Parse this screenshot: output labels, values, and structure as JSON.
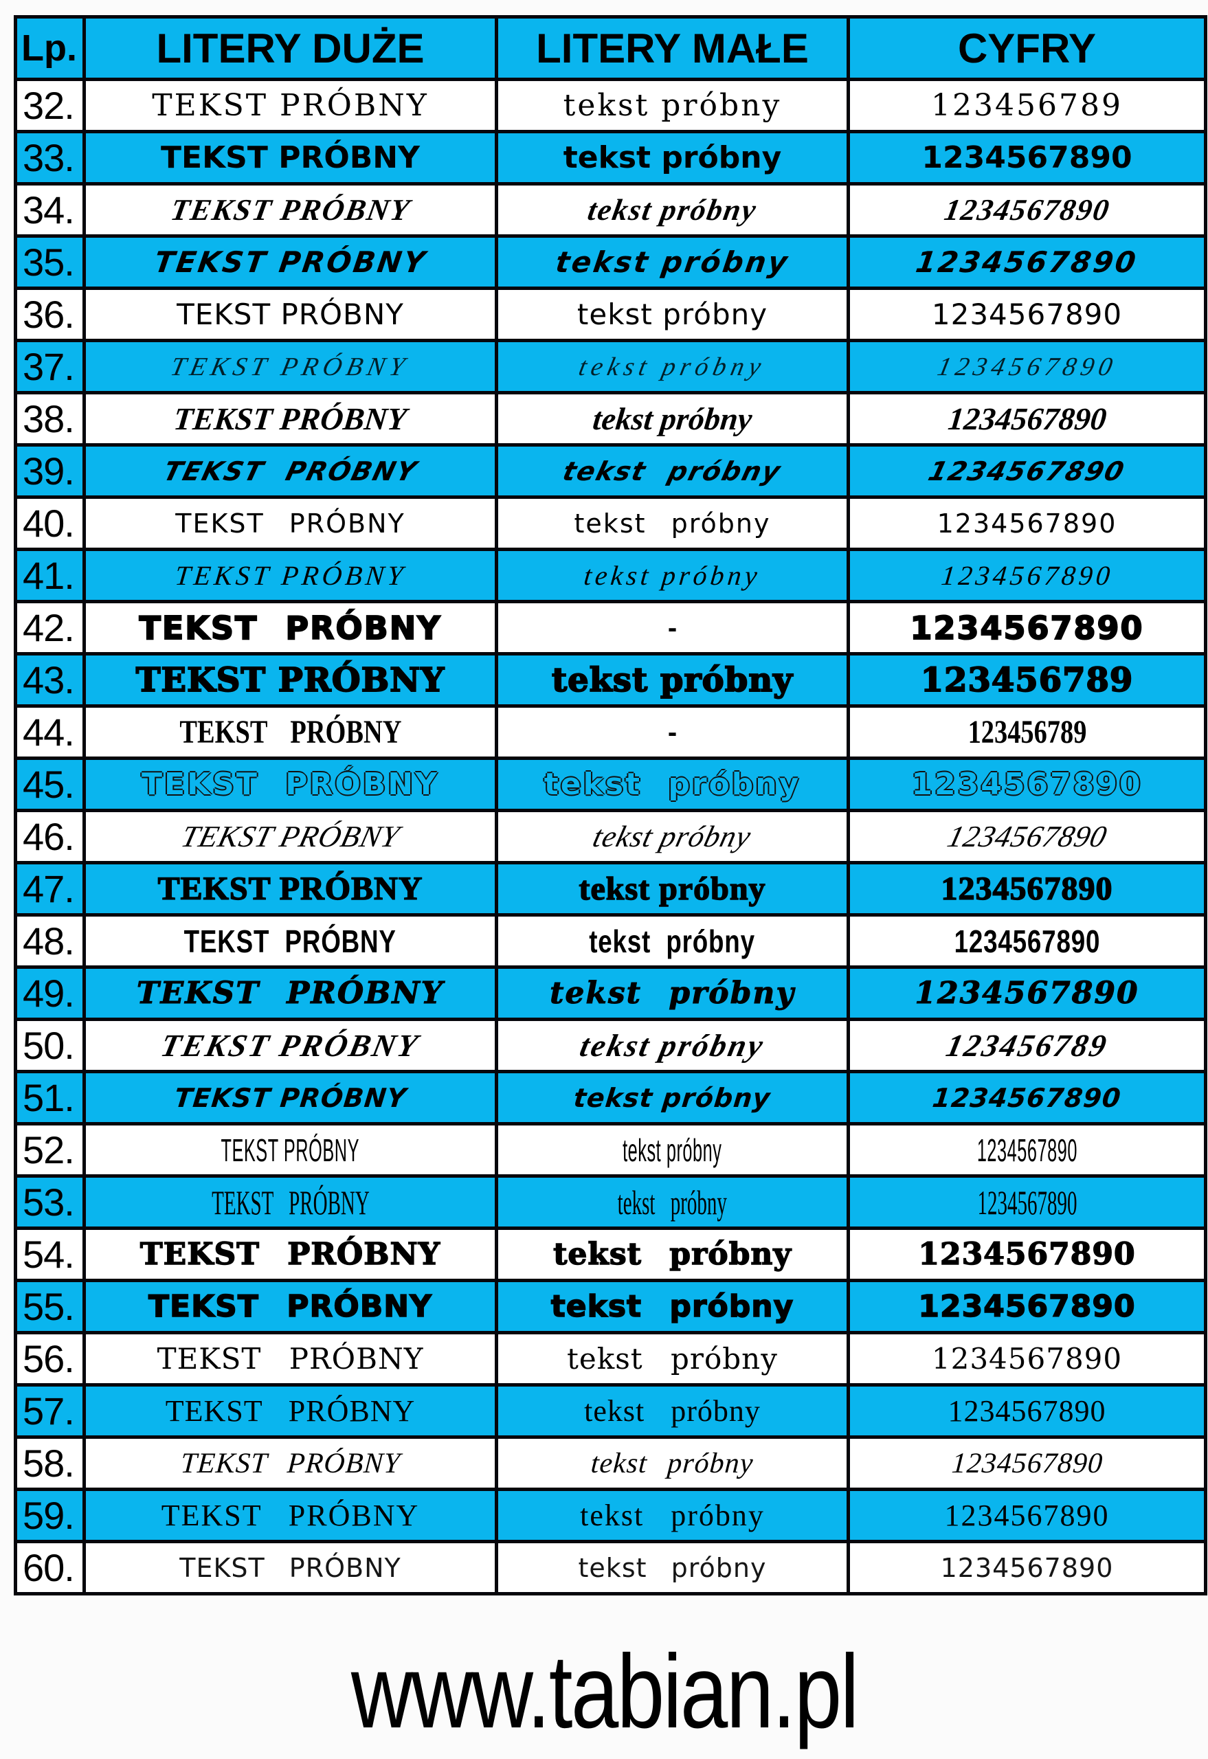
{
  "colors": {
    "highlight": "#0ab5ee",
    "border": "#06060c",
    "text": "#000000",
    "page_background": "#fbfbfb"
  },
  "footer": {
    "website": "www.tabian.pl"
  },
  "table": {
    "headers": {
      "lp": "Lp.",
      "upper": "LITERY DUŻE",
      "lower": "LITERY MAŁE",
      "digits": "CYFRY"
    },
    "rows": [
      {
        "no": "32.",
        "upper": "TEKST PRÓBNY",
        "lower": "tekst próbny",
        "digits": "123456789",
        "blue": false,
        "style": "inline-serif"
      },
      {
        "no": "33.",
        "upper": "TEKST PRÓBNY",
        "lower": "tekst próbny",
        "digits": "1234567890",
        "blue": true,
        "style": "rounded-comic"
      },
      {
        "no": "34.",
        "upper": "TEKST PRÓBNY",
        "lower": "tekst próbny",
        "digits": "1234567890",
        "blue": false,
        "style": "bold-script"
      },
      {
        "no": "35.",
        "upper": "TEKST PRÓBNY",
        "lower": "tekst próbny",
        "digits": "1234567890",
        "blue": true,
        "style": "marker-script"
      },
      {
        "no": "36.",
        "upper": "TEKST PRÓBNY",
        "lower": "tekst próbny",
        "digits": "1234567890",
        "blue": false,
        "style": "casual-sans"
      },
      {
        "no": "37.",
        "upper": "TEKST PRÓBNY",
        "lower": "tekst próbny",
        "digits": "1234567890",
        "blue": true,
        "style": "copperplate"
      },
      {
        "no": "38.",
        "upper": "TEKST PRÓBNY",
        "lower": "tekst próbny",
        "digits": "1234567890",
        "blue": false,
        "style": "brush-caps"
      },
      {
        "no": "39.",
        "upper": "TEKST PRÓBNY",
        "lower": "tekst próbny",
        "digits": "1234567890",
        "blue": true,
        "style": "italic-marker"
      },
      {
        "no": "40.",
        "upper": "TEKST PRÓBNY",
        "lower": "tekst próbny",
        "digits": "1234567890",
        "blue": false,
        "style": "thin-casual"
      },
      {
        "no": "41.",
        "upper": "TEKST PRÓBNY",
        "lower": "tekst próbny",
        "digits": "1234567890",
        "blue": true,
        "style": "ornate-script"
      },
      {
        "no": "42.",
        "upper": "TEKST PRÓBNY",
        "lower": "-",
        "digits": "1234567890",
        "blue": false,
        "style": "heavy-poster"
      },
      {
        "no": "43.",
        "upper": "TEKST PRÓBNY",
        "lower": "tekst próbny",
        "digits": "123456789",
        "blue": true,
        "style": "cooper-black"
      },
      {
        "no": "44.",
        "upper": "TEKST PRÓBNY",
        "lower": "-",
        "digits": "123456789",
        "blue": false,
        "style": "condensed-slab"
      },
      {
        "no": "45.",
        "upper": "TEKST PRÓBNY",
        "lower": "tekst próbny",
        "digits": "1234567890",
        "blue": true,
        "style": "outline"
      },
      {
        "no": "46.",
        "upper": "TEKST PRÓBNY",
        "lower": "tekst próbny",
        "digits": "1234567890",
        "blue": false,
        "style": "scratchy-hand"
      },
      {
        "no": "47.",
        "upper": "TEKST PRÓBNY",
        "lower": "tekst próbny",
        "digits": "1234567890",
        "blue": true,
        "style": "slab-xbold"
      },
      {
        "no": "48.",
        "upper": "TEKST PRÓBNY",
        "lower": "tekst próbny",
        "digits": "1234567890",
        "blue": false,
        "style": "impact-cond"
      },
      {
        "no": "49.",
        "upper": "TEKST PRÓBNY",
        "lower": "tekst próbny",
        "digits": "1234567890",
        "blue": true,
        "style": "funky-bold"
      },
      {
        "no": "50.",
        "upper": "TEKST PRÓBNY",
        "lower": "tekst próbny",
        "digits": "123456789",
        "blue": false,
        "style": "script-caps"
      },
      {
        "no": "51.",
        "upper": "TEKST PRÓBNY",
        "lower": "tekst próbny",
        "digits": "1234567890",
        "blue": true,
        "style": "marker-casual"
      },
      {
        "no": "52.",
        "upper": "TEKST PRÓBNY",
        "lower": "tekst próbny",
        "digits": "1234567890",
        "blue": false,
        "style": "ultra-cond-thin"
      },
      {
        "no": "53.",
        "upper": "TEKST PRÓBNY",
        "lower": "tekst próbny",
        "digits": "1234567890",
        "blue": true,
        "style": "ultra-cond-serif"
      },
      {
        "no": "54.",
        "upper": "TEKST PRÓBNY",
        "lower": "tekst próbny",
        "digits": "1234567890",
        "blue": false,
        "style": "heavy-slab"
      },
      {
        "no": "55.",
        "upper": "TEKST PRÓBNY",
        "lower": "tekst próbny",
        "digits": "1234567890",
        "blue": true,
        "style": "heavy-sans"
      },
      {
        "no": "56.",
        "upper": "TEKST PRÓBNY",
        "lower": "tekst próbny",
        "digits": "1234567890",
        "blue": false,
        "style": "book-serif"
      },
      {
        "no": "57.",
        "upper": "TEKST PRÓBNY",
        "lower": "tekst próbny",
        "digits": "1234567890",
        "blue": true,
        "style": "times-serif"
      },
      {
        "no": "58.",
        "upper": "TEKST PRÓBNY",
        "lower": "tekst próbny",
        "digits": "1234567890",
        "blue": false,
        "style": "calligraphic"
      },
      {
        "no": "59.",
        "upper": "TEKST PRÓBNY",
        "lower": "tekst próbny",
        "digits": "1234567890",
        "blue": true,
        "style": "oldstyle-serif"
      },
      {
        "no": "60.",
        "upper": "TEKST PRÓBNY",
        "lower": "tekst próbny",
        "digits": "1234567890",
        "blue": false,
        "style": "light-casual"
      }
    ]
  }
}
